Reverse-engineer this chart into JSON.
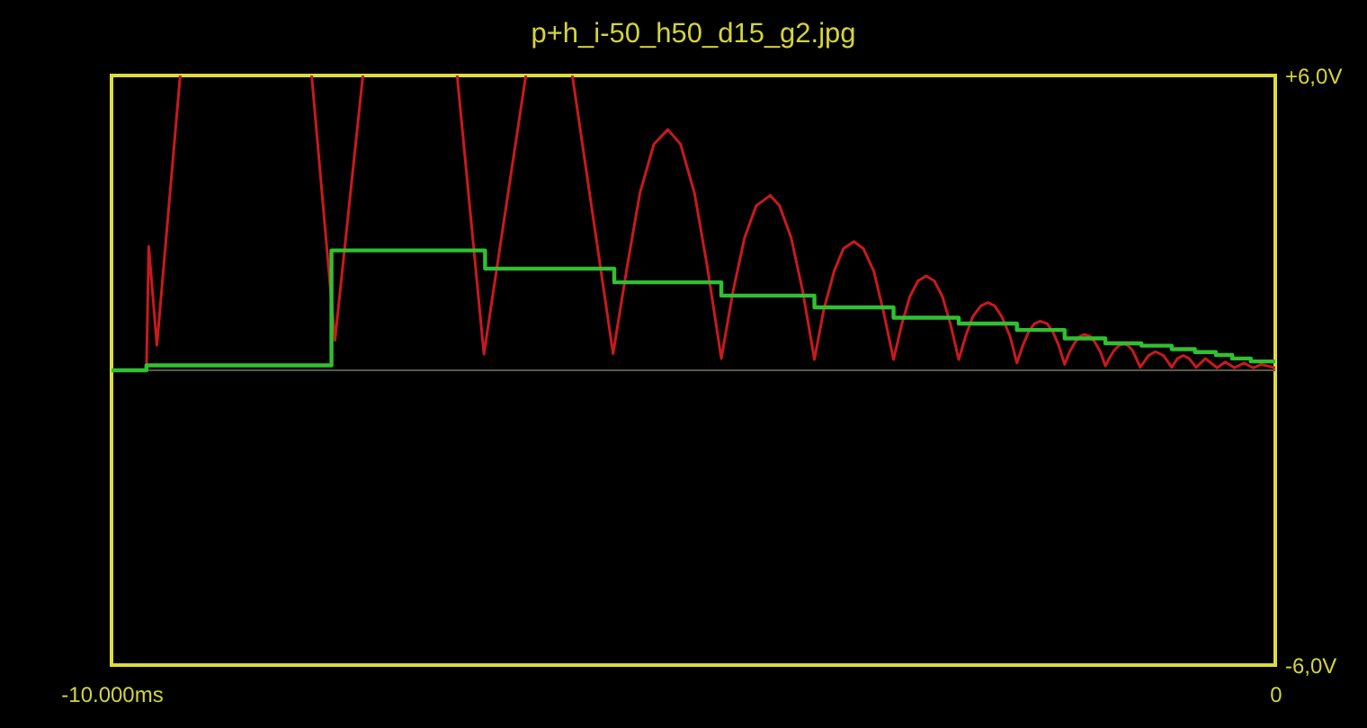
{
  "chart_data": {
    "type": "line",
    "title": "p+h_i-50_h50_d15_g2.jpg",
    "xlim": [
      -10000,
      0
    ],
    "xticks": [
      {
        "value": -10000,
        "label": "-10.000ms"
      },
      {
        "value": 0,
        "label": "0"
      }
    ],
    "ylim": [
      -6,
      6
    ],
    "yticks": [
      {
        "value": 6,
        "label": "+6,0V"
      },
      {
        "value": -6,
        "label": "-6,0V"
      }
    ],
    "ref_lines": [
      {
        "axis": "y",
        "value": 0,
        "color": "#5a5a46"
      }
    ],
    "series": [
      {
        "color": "#c81a1e",
        "x": [
          -10000,
          -9700,
          -9680,
          -9610,
          -9410,
          -8800,
          -8280,
          -8080,
          -7840,
          -7400,
          -7030,
          -6800,
          -6440,
          -6200,
          -6040,
          -5690,
          -5570,
          -5460,
          -5340,
          -5220,
          -5110,
          -4990,
          -4880,
          -4760,
          -4660,
          -4560,
          -4460,
          -4340,
          -4260,
          -4160,
          -4060,
          -3960,
          -3880,
          -3790,
          -3710,
          -3620,
          -3540,
          -3450,
          -3370,
          -3280,
          -3210,
          -3140,
          -3070,
          -3000,
          -2930,
          -2860,
          -2790,
          -2720,
          -2660,
          -2600,
          -2530,
          -2470,
          -2410,
          -2350,
          -2280,
          -2220,
          -2170,
          -2120,
          -2070,
          -2020,
          -1960,
          -1910,
          -1860,
          -1810,
          -1770,
          -1720,
          -1680,
          -1640,
          -1590,
          -1550,
          -1500,
          -1460,
          -1420,
          -1380,
          -1340,
          -1300,
          -1270,
          -1230,
          -1200,
          -1160,
          -1090,
          -1030,
          -960,
          -890,
          -840,
          -790,
          -740,
          -680,
          -600,
          -500,
          -430,
          -350,
          -270,
          -190,
          -120,
          0
        ],
        "values": [
          0,
          0,
          2.52,
          0.51,
          6,
          null,
          6,
          0.61,
          6,
          null,
          6,
          0.33,
          6,
          null,
          6,
          0.34,
          2.1,
          3.6,
          4.6,
          4.9,
          4.6,
          3.6,
          2.1,
          0.24,
          1.6,
          2.7,
          3.35,
          3.56,
          3.35,
          2.7,
          1.6,
          0.22,
          1.23,
          2.02,
          2.48,
          2.62,
          2.48,
          2.02,
          1.23,
          0.22,
          0.93,
          1.5,
          1.82,
          1.92,
          1.82,
          1.5,
          0.93,
          0.22,
          0.7,
          1.09,
          1.31,
          1.38,
          1.31,
          1.09,
          0.7,
          0.15,
          0.5,
          0.78,
          0.95,
          1.0,
          0.95,
          0.78,
          0.5,
          0.12,
          0.36,
          0.57,
          0.69,
          0.73,
          0.69,
          0.57,
          0.36,
          0.09,
          0.27,
          0.42,
          0.51,
          0.54,
          0.51,
          0.42,
          0.27,
          0.06,
          0.3,
          0.38,
          0.3,
          0.06,
          0.24,
          0.3,
          0.24,
          0.06,
          0.24,
          0.05,
          0.17,
          0.05,
          0.15,
          0.05,
          0.12,
          0.05
        ]
      },
      {
        "type": "step",
        "color": "#30c030",
        "x": [
          -10000,
          -9700,
          -8110,
          -6790,
          -5680,
          -4760,
          -3960,
          -3280,
          -2720,
          -2220,
          -1810,
          -1460,
          -1150,
          -890,
          -690,
          -510,
          -370,
          -210,
          0
        ],
        "values": [
          0,
          0.1,
          2.44,
          2.07,
          1.79,
          1.52,
          1.28,
          1.07,
          0.95,
          0.82,
          0.65,
          0.55,
          0.5,
          0.43,
          0.37,
          0.31,
          0.24,
          0.18,
          0.18
        ]
      }
    ]
  }
}
